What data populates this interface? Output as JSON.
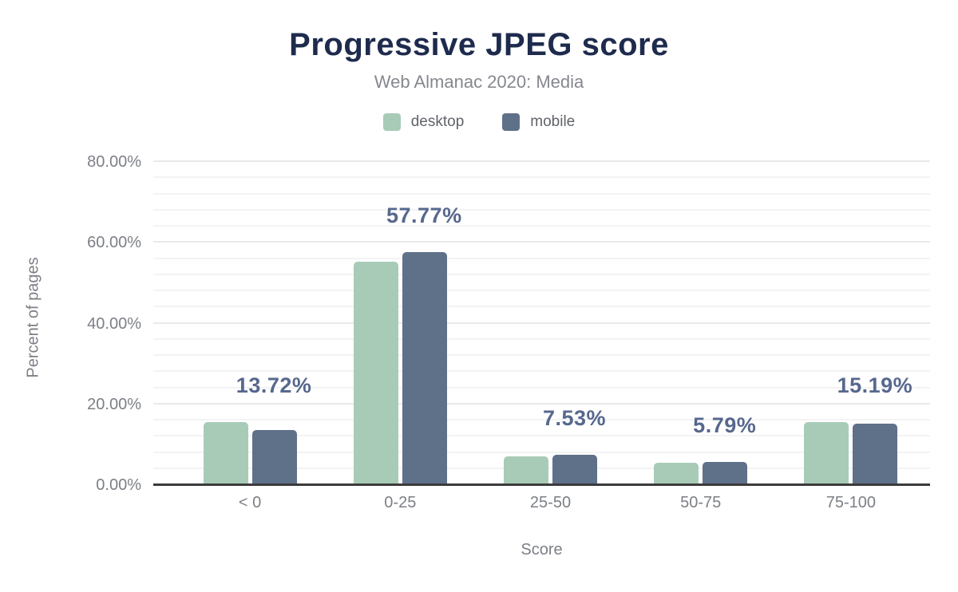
{
  "header": {
    "title": "Progressive JPEG score",
    "subtitle": "Web Almanac 2020: Media"
  },
  "chart_data": {
    "type": "bar",
    "title": "Progressive JPEG score",
    "subtitle": "Web Almanac 2020: Media",
    "categories": [
      "< 0",
      "0-25",
      "25-50",
      "50-75",
      "75-100"
    ],
    "series": [
      {
        "name": "desktop",
        "color": "#a8cbb7",
        "values": [
          15.6,
          55.3,
          7.1,
          5.6,
          15.6
        ]
      },
      {
        "name": "mobile",
        "color": "#5f7089",
        "values": [
          13.72,
          57.77,
          7.53,
          5.79,
          15.19
        ]
      }
    ],
    "data_labels": {
      "series": "mobile",
      "values": [
        "13.72%",
        "57.77%",
        "7.53%",
        "5.79%",
        "15.19%"
      ],
      "color": "#57688e"
    },
    "xlabel": "Score",
    "ylabel": "Percent of pages",
    "ylim": [
      0,
      83
    ],
    "ytick_values": [
      0,
      20,
      40,
      60,
      80
    ],
    "ytick_labels": [
      "0.00%",
      "20.00%",
      "40.00%",
      "60.00%",
      "80.00%"
    ],
    "grid": {
      "on": true,
      "minor_step": 4,
      "major_step": 20
    },
    "legend_position": "top"
  },
  "colors": {
    "title": "#1e2b4d",
    "subtitle": "#85888e",
    "axis_text": "#7c7f86",
    "axis_line": "#3b3b3b",
    "background": "#ffffff"
  }
}
